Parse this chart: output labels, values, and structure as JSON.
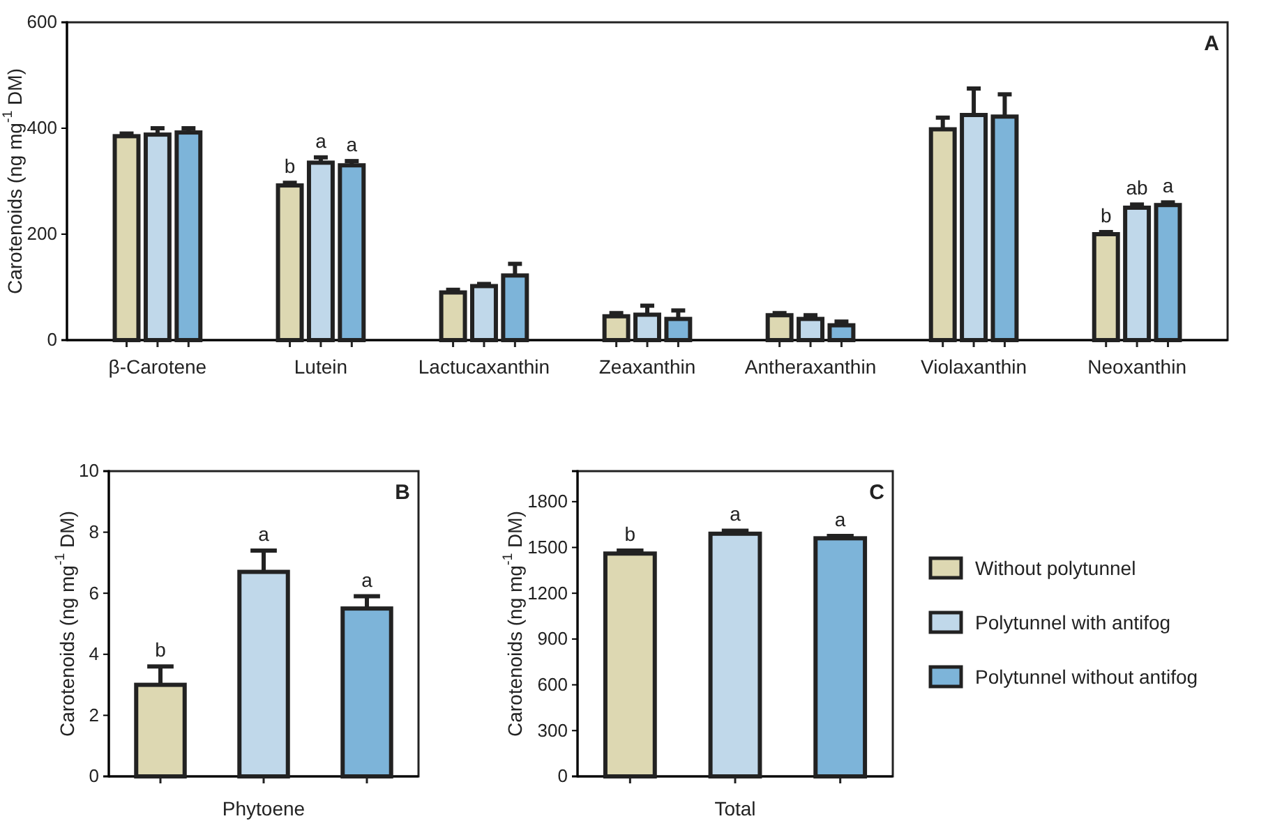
{
  "chart_data": [
    {
      "type": "bar",
      "ylabel": "Carotenoids (ng mg$^{-1}$ DM)",
      "categories": [
        "β-Carotene",
        "Lutein",
        "Lactucaxanthin",
        "Zeaxanthin",
        "Antheraxanthin",
        "Violaxanthin",
        "Neoxanthin"
      ],
      "ylim": [
        0,
        600
      ],
      "yticks": [
        0,
        200,
        400,
        600
      ],
      "series": [
        {
          "color": "#ddd8b2",
          "values": [
            385,
            292,
            90,
            45,
            47,
            398,
            200
          ],
          "errors": [
            5,
            5,
            5,
            6,
            4,
            22,
            4
          ],
          "value_labels": [
            null,
            "b",
            null,
            null,
            null,
            null,
            "b"
          ]
        },
        {
          "color": "#c0d8ea",
          "values": [
            388,
            335,
            102,
            48,
            40,
            425,
            250
          ],
          "errors": [
            12,
            10,
            4,
            17,
            7,
            50,
            6
          ],
          "value_labels": [
            null,
            "a",
            null,
            null,
            null,
            null,
            "ab"
          ]
        },
        {
          "color": "#7db4d9",
          "values": [
            392,
            330,
            122,
            40,
            28,
            422,
            255
          ],
          "errors": [
            8,
            8,
            22,
            16,
            7,
            42,
            5
          ],
          "value_labels": [
            null,
            "a",
            null,
            null,
            null,
            null,
            "a"
          ]
        }
      ],
      "annotations": [
        "A"
      ]
    },
    {
      "type": "bar",
      "ylabel": "Carotenoids (ng mg$^{-1}$ DM)",
      "xlabel": "Phytoene",
      "categories": [
        null,
        null,
        null
      ],
      "ylim": [
        0,
        10
      ],
      "yticks": [
        0,
        2,
        4,
        6,
        8,
        10
      ],
      "series": [
        {
          "colors": [
            "#ddd8b2",
            "#c0d8ea",
            "#7db4d9"
          ],
          "values": [
            3.0,
            6.7,
            5.5
          ],
          "errors": [
            0.6,
            0.7,
            0.4
          ],
          "value_labels": [
            "b",
            "a",
            "a"
          ]
        }
      ],
      "annotations": [
        "B"
      ]
    },
    {
      "type": "bar",
      "ylabel": "Carotenoids (ng mg$^{-1}$ DM)",
      "xlabel": "Total",
      "categories": [
        null,
        null,
        null
      ],
      "ylim": [
        0,
        2000
      ],
      "yticks": [
        0,
        300,
        600,
        900,
        1200,
        1500,
        1800
      ],
      "legend": "right",
      "series": [
        {
          "name": "Without polytunnel",
          "color": "#ddd8b2",
          "values": [
            1460,
            null,
            null
          ],
          "errors": [
            20,
            null,
            null
          ],
          "value_labels": [
            "b",
            null,
            null
          ]
        },
        {
          "name": "Polytunnel with antifog",
          "color": "#c0d8ea",
          "values": [
            null,
            1590,
            null
          ],
          "errors": [
            null,
            20,
            null
          ],
          "value_labels": [
            null,
            "a",
            null
          ]
        },
        {
          "name": "Polytunnel without antifog",
          "color": "#7db4d9",
          "values": [
            null,
            null,
            1560
          ],
          "errors": [
            null,
            null,
            15
          ],
          "value_labels": [
            null,
            null,
            "a"
          ]
        }
      ],
      "annotations": [
        "C"
      ]
    }
  ]
}
